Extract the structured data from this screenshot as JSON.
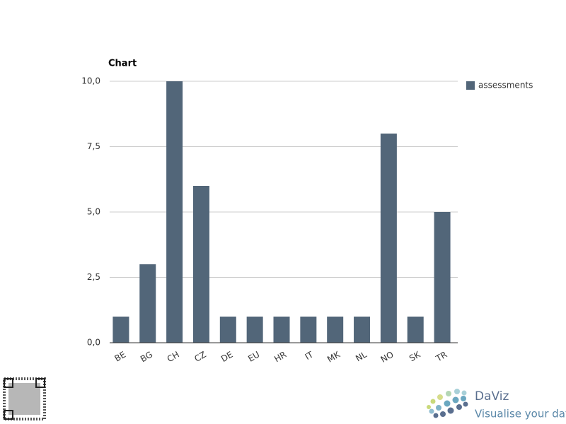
{
  "chart_data": {
    "type": "bar",
    "title": "Chart",
    "categories": [
      "BE",
      "BG",
      "CH",
      "CZ",
      "DE",
      "EU",
      "HR",
      "IT",
      "MK",
      "NL",
      "NO",
      "SK",
      "TR"
    ],
    "series": [
      {
        "name": "assessments",
        "color": "#526679",
        "values": [
          1,
          3,
          10,
          6,
          1,
          1,
          1,
          1,
          1,
          1,
          8,
          1,
          5
        ]
      }
    ],
    "ylim": [
      0,
      10
    ],
    "yticks": [
      {
        "value": 0,
        "label": "0,0"
      },
      {
        "value": 2.5,
        "label": "2,5"
      },
      {
        "value": 5,
        "label": "5,0"
      },
      {
        "value": 7.5,
        "label": "7,5"
      },
      {
        "value": 10,
        "label": "10,0"
      }
    ],
    "grid": true,
    "legend": "right"
  },
  "logo": {
    "name": "DaViz",
    "tagline": "Visualise your data"
  }
}
